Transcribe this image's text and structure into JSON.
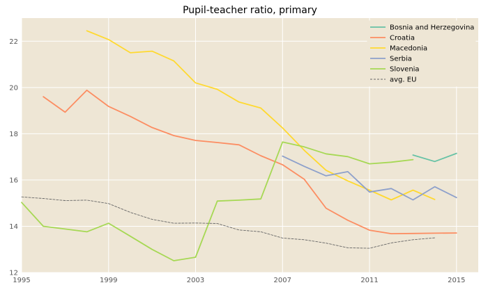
{
  "chart_data": {
    "type": "line",
    "title": "Pupil-teacher ratio, primary",
    "xlabel": "",
    "ylabel": "",
    "xlim": [
      1995,
      2016
    ],
    "ylim": [
      12,
      23
    ],
    "x_ticks": [
      1995,
      1999,
      2003,
      2007,
      2011,
      2015
    ],
    "y_ticks": [
      12,
      14,
      16,
      18,
      20,
      22
    ],
    "grid": true,
    "legend_position": "top-right",
    "series": [
      {
        "name": "Bosnia and Herzegovina",
        "color": "#66c2a5",
        "dash": false,
        "points": [
          [
            2013,
            17.08
          ],
          [
            2014,
            16.8
          ],
          [
            2015,
            17.15
          ]
        ]
      },
      {
        "name": "Croatia",
        "color": "#fc8d62",
        "dash": false,
        "points": [
          [
            1996,
            19.6
          ],
          [
            1997,
            18.93
          ],
          [
            1998,
            19.88
          ],
          [
            1999,
            19.18
          ],
          [
            2000,
            18.75
          ],
          [
            2001,
            18.27
          ],
          [
            2002,
            17.92
          ],
          [
            2003,
            17.71
          ],
          [
            2004,
            17.62
          ],
          [
            2005,
            17.52
          ],
          [
            2006,
            17.05
          ],
          [
            2007,
            16.66
          ],
          [
            2008,
            16.03
          ],
          [
            2009,
            14.78
          ],
          [
            2010,
            14.26
          ],
          [
            2011,
            13.83
          ],
          [
            2012,
            13.68
          ],
          [
            2013,
            13.69
          ],
          [
            2014,
            13.7
          ],
          [
            2015,
            13.71
          ]
        ]
      },
      {
        "name": "Macedonia",
        "color": "#ffd92f",
        "dash": false,
        "points": [
          [
            1998,
            22.45
          ],
          [
            1999,
            22.07
          ],
          [
            2000,
            21.5
          ],
          [
            2001,
            21.57
          ],
          [
            2002,
            21.15
          ],
          [
            2003,
            20.2
          ],
          [
            2004,
            19.92
          ],
          [
            2005,
            19.37
          ],
          [
            2006,
            19.11
          ],
          [
            2007,
            18.25
          ],
          [
            2008,
            17.28
          ],
          [
            2009,
            16.42
          ],
          [
            2010,
            15.96
          ],
          [
            2011,
            15.56
          ],
          [
            2012,
            15.14
          ],
          [
            2013,
            15.56
          ],
          [
            2014,
            15.16
          ]
        ]
      },
      {
        "name": "Serbia",
        "color": "#8da0cb",
        "dash": false,
        "points": [
          [
            2007,
            17.03
          ],
          [
            2008,
            16.59
          ],
          [
            2009,
            16.18
          ],
          [
            2010,
            16.36
          ],
          [
            2011,
            15.48
          ],
          [
            2012,
            15.63
          ],
          [
            2013,
            15.14
          ],
          [
            2014,
            15.71
          ],
          [
            2015,
            15.24
          ]
        ]
      },
      {
        "name": "Slovenia",
        "color": "#a6d854",
        "dash": false,
        "points": [
          [
            1995,
            15.03
          ],
          [
            1996,
            14
          ],
          [
            1997,
            13.88
          ],
          [
            1998,
            13.76
          ],
          [
            1999,
            14.13
          ],
          [
            2000,
            13.57
          ],
          [
            2001,
            13
          ],
          [
            2002,
            12.51
          ],
          [
            2003,
            12.66
          ],
          [
            2004,
            15.09
          ],
          [
            2005,
            15.13
          ],
          [
            2006,
            15.18
          ],
          [
            2007,
            17.64
          ],
          [
            2008,
            17.43
          ],
          [
            2009,
            17.13
          ],
          [
            2010,
            17.01
          ],
          [
            2011,
            16.7
          ],
          [
            2012,
            16.77
          ],
          [
            2013,
            16.88
          ]
        ]
      },
      {
        "name": "avg. EU",
        "color": "#666666",
        "dash": true,
        "points": [
          [
            1995,
            15.27
          ],
          [
            1996,
            15.2
          ],
          [
            1997,
            15.11
          ],
          [
            1998,
            15.13
          ],
          [
            1999,
            14.98
          ],
          [
            2000,
            14.6
          ],
          [
            2001,
            14.3
          ],
          [
            2002,
            14.13
          ],
          [
            2003,
            14.14
          ],
          [
            2004,
            14.12
          ],
          [
            2005,
            13.84
          ],
          [
            2006,
            13.76
          ],
          [
            2007,
            13.49
          ],
          [
            2008,
            13.42
          ],
          [
            2009,
            13.27
          ],
          [
            2010,
            13.07
          ],
          [
            2011,
            13.05
          ],
          [
            2012,
            13.28
          ],
          [
            2013,
            13.42
          ],
          [
            2014,
            13.5
          ]
        ]
      }
    ]
  }
}
